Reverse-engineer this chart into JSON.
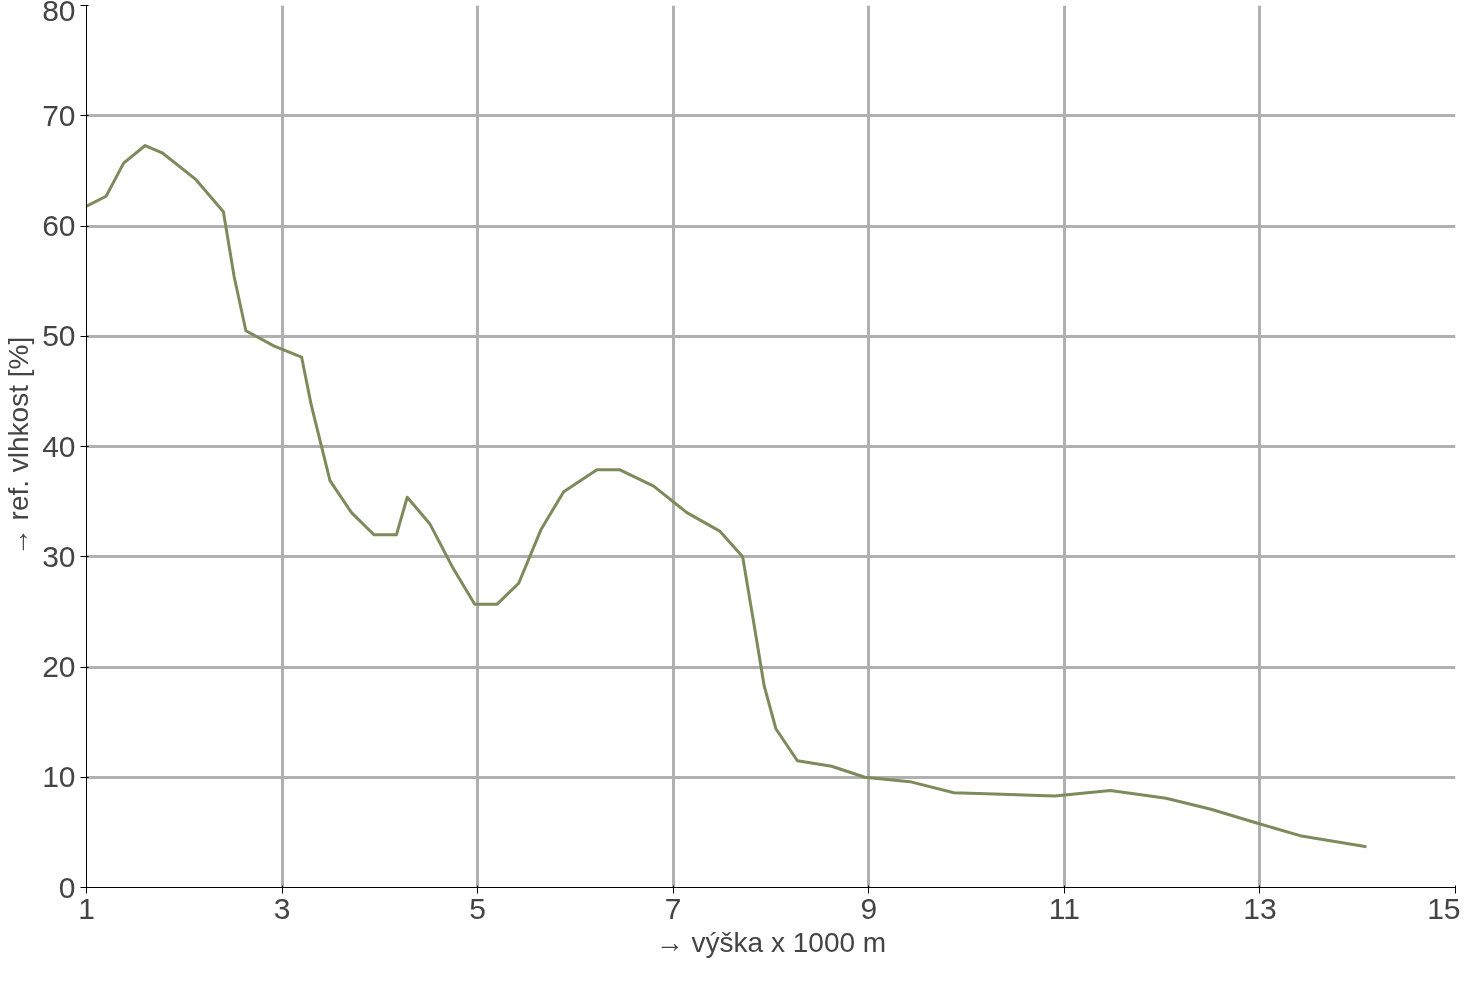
{
  "chart_data": {
    "type": "line",
    "xlabel": "→ výška x 1000 m",
    "ylabel": "→ ref. vlhkost [%]",
    "xlim": [
      1,
      15
    ],
    "ylim": [
      0,
      80
    ],
    "xticks": [
      1,
      3,
      5,
      7,
      9,
      11,
      13,
      15
    ],
    "yticks": [
      0,
      10,
      20,
      30,
      40,
      50,
      60,
      70,
      80
    ],
    "grid": true,
    "series": [
      {
        "color": "#7d8a5c",
        "x": [
          1,
          1.2,
          1.38,
          1.6,
          1.78,
          2.12,
          2.4,
          2.51,
          2.63,
          2.92,
          3.2,
          3.3,
          3.49,
          3.71,
          3.94,
          4.17,
          4.28,
          4.51,
          4.74,
          4.97,
          5.2,
          5.42,
          5.65,
          5.88,
          6.22,
          6.45,
          6.8,
          7.14,
          7.48,
          7.71,
          7.82,
          7.93,
          8.05,
          8.27,
          8.62,
          8.96,
          9.42,
          9.87,
          10.9,
          11.47,
          12.04,
          12.5,
          12.95,
          13.41,
          14.09
        ],
        "values": [
          61.8,
          62.7,
          65.7,
          67.3,
          66.6,
          64.2,
          61.3,
          55.4,
          50.5,
          49.1,
          48.1,
          43.7,
          36.9,
          34.0,
          32.0,
          32.0,
          35.4,
          33.0,
          29.1,
          25.7,
          25.7,
          27.6,
          32.5,
          35.9,
          37.9,
          37.9,
          36.4,
          34.0,
          32.3,
          30.0,
          24.2,
          18.3,
          14.4,
          11.5,
          11.0,
          10.0,
          9.6,
          8.6,
          8.3,
          8.8,
          8.1,
          7.1,
          5.9,
          4.7,
          3.7
        ]
      }
    ]
  }
}
